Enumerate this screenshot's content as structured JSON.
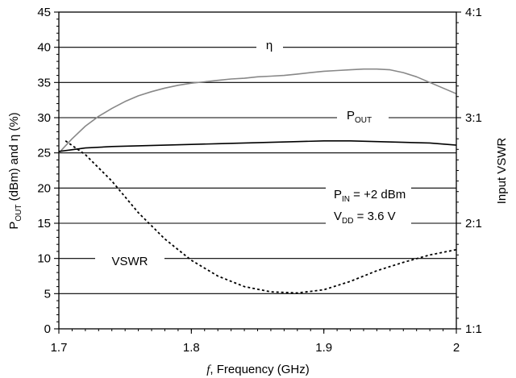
{
  "chart_data": {
    "type": "line",
    "xlabel_italic": "f",
    "xlabel_rest": ", Frequency (GHz)",
    "ylabel": {
      "p1": "P",
      "p1_sub": "OUT",
      "p2": " (dBm) and  η (%)"
    },
    "y2label": "Input VSWR",
    "xlim": [
      1.7,
      2.0
    ],
    "ylim": [
      0,
      45
    ],
    "y2lim": [
      1,
      4
    ],
    "x_ticks": [
      "1.7",
      "1.8",
      "1.9",
      "2"
    ],
    "x_tick_values": [
      1.7,
      1.8,
      1.9,
      2.0
    ],
    "y_ticks": [
      0,
      5,
      10,
      15,
      20,
      25,
      30,
      35,
      40,
      45
    ],
    "y2_ticks": [
      "1:1",
      "2:1",
      "3:1",
      "4:1"
    ],
    "y2_tick_values": [
      1,
      2,
      3,
      4
    ],
    "grid": "horizontal",
    "series": [
      {
        "name": "η",
        "axis": "left",
        "color": "#888888",
        "style": "solid",
        "x": [
          1.7,
          1.71,
          1.72,
          1.73,
          1.74,
          1.75,
          1.76,
          1.77,
          1.78,
          1.79,
          1.8,
          1.81,
          1.82,
          1.83,
          1.84,
          1.85,
          1.86,
          1.87,
          1.88,
          1.89,
          1.9,
          1.91,
          1.92,
          1.93,
          1.94,
          1.95,
          1.96,
          1.97,
          1.98,
          1.99,
          2.0
        ],
        "y": [
          25.0,
          27.0,
          28.8,
          30.2,
          31.3,
          32.3,
          33.1,
          33.7,
          34.2,
          34.6,
          34.9,
          35.1,
          35.3,
          35.5,
          35.6,
          35.8,
          35.9,
          36.0,
          36.2,
          36.4,
          36.6,
          36.7,
          36.8,
          36.9,
          36.9,
          36.8,
          36.4,
          35.8,
          35.0,
          34.2,
          33.4
        ]
      },
      {
        "name": "POUT",
        "axis": "left",
        "color": "#000000",
        "style": "solid",
        "x": [
          1.7,
          1.72,
          1.74,
          1.76,
          1.78,
          1.8,
          1.82,
          1.84,
          1.86,
          1.88,
          1.9,
          1.92,
          1.94,
          1.96,
          1.98,
          2.0
        ],
        "y": [
          25.2,
          25.7,
          25.9,
          26.0,
          26.1,
          26.2,
          26.3,
          26.4,
          26.5,
          26.6,
          26.7,
          26.7,
          26.6,
          26.5,
          26.4,
          26.1
        ]
      },
      {
        "name": "VSWR",
        "axis": "right",
        "color": "#000000",
        "style": "dotted",
        "x": [
          1.705,
          1.72,
          1.74,
          1.76,
          1.78,
          1.8,
          1.82,
          1.84,
          1.86,
          1.88,
          1.9,
          1.92,
          1.94,
          1.96,
          1.98,
          2.0
        ],
        "y": [
          2.78,
          2.65,
          2.4,
          2.1,
          1.85,
          1.65,
          1.5,
          1.4,
          1.35,
          1.34,
          1.37,
          1.45,
          1.55,
          1.63,
          1.7,
          1.75
        ]
      }
    ],
    "annotations": {
      "eta": "η",
      "pout_main": "P",
      "pout_sub": "OUT",
      "vswr": "VSWR",
      "pin_main": "P",
      "pin_sub": "IN",
      "pin_value": " = +2 dBm",
      "vdd_main": "V",
      "vdd_sub": "DD",
      "vdd_value": " = 3.6 V"
    }
  }
}
